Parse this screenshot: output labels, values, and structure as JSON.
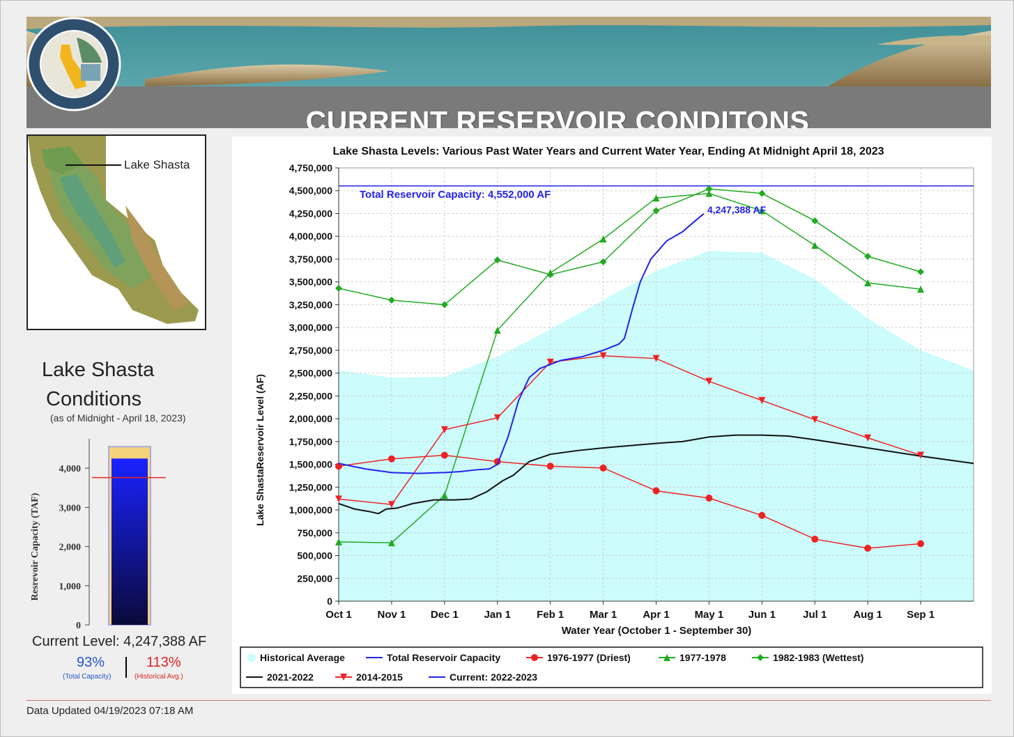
{
  "header": {
    "title": "CURRENT RESERVOIR CONDITONS"
  },
  "map": {
    "label": "Lake Shasta"
  },
  "conditions": {
    "title_line1": "Lake Shasta",
    "title_line2": "Conditions",
    "subtitle": "(as of Midnight - April 18, 2023)",
    "gauge_ylabel": "Resrevoir Capacity (TAF)",
    "gauge_ticks": [
      "4,000",
      "3,000",
      "2,000",
      "1,000",
      "0"
    ],
    "gauge_capacity_taf": 4552,
    "gauge_current_taf": 4247,
    "gauge_hist_avg_taf": 3760,
    "current_level": "Current Level: 4,247,388 AF",
    "pct_total": "93%",
    "pct_total_label": "(Total Capacity)",
    "pct_hist": "113%",
    "pct_hist_label": "(Historical Avg.)"
  },
  "footer": {
    "updated": "Data Updated 04/19/2023 07:18 AM"
  },
  "colors": {
    "historical": "#ccfcfc",
    "capacity": "#2222ee",
    "driest": "#ee2222",
    "y7778": "#22aa22",
    "wettest": "#22aa22",
    "y2122": "#111111",
    "y1415": "#ee2222",
    "current": "#2222ee"
  },
  "chart_data": {
    "type": "line",
    "title": "Lake Shasta Levels: Various Past Water Years and Current Water Year, Ending At Midnight April 18, 2023",
    "xlabel": "Water Year (October 1 - September 30)",
    "ylabel": "Lake ShastaReservoir Level (AF)",
    "x_ticks": [
      "Oct 1",
      "Nov 1",
      "Dec 1",
      "Jan 1",
      "Feb 1",
      "Mar 1",
      "Apr 1",
      "May 1",
      "Jun 1",
      "Jul 1",
      "Aug 1",
      "Sep 1"
    ],
    "xlim": [
      0,
      12
    ],
    "ylim": [
      0,
      4750000
    ],
    "y_ticks": [
      0,
      250000,
      500000,
      750000,
      1000000,
      1250000,
      1500000,
      1750000,
      2000000,
      2250000,
      2500000,
      2750000,
      3000000,
      3250000,
      3500000,
      3750000,
      4000000,
      4250000,
      4500000,
      4750000
    ],
    "y_tick_labels": [
      "0",
      "250,000",
      "500,000",
      "750,000",
      "1,000,000",
      "1,250,000",
      "1,500,000",
      "1,750,000",
      "2,000,000",
      "2,250,000",
      "2,500,000",
      "2,750,000",
      "3,000,000",
      "3,250,000",
      "3,500,000",
      "3,750,000",
      "4,000,000",
      "4,250,000",
      "4,500,000",
      "4,750,000"
    ],
    "capacity": {
      "value": 4552000,
      "label": "Total Reservoir Capacity: 4,552,000 AF"
    },
    "current_label": "4,247,388 AF",
    "historical_average": {
      "x": [
        0,
        1,
        2,
        3,
        4,
        5,
        6,
        7,
        8,
        9,
        10,
        11,
        12
      ],
      "y": [
        2530000,
        2450000,
        2460000,
        2680000,
        2980000,
        3300000,
        3620000,
        3840000,
        3820000,
        3530000,
        3100000,
        2750000,
        2530000
      ]
    },
    "series": [
      {
        "name": "1976-1977 (Driest)",
        "marker": "circle",
        "color_key": "driest",
        "x": [
          0,
          1,
          2,
          3,
          4,
          5,
          6,
          7,
          8,
          9,
          10,
          11
        ],
        "y": [
          1480000,
          1560000,
          1600000,
          1530000,
          1480000,
          1460000,
          1210000,
          1130000,
          940000,
          680000,
          580000,
          630000
        ]
      },
      {
        "name": "1977-1978",
        "marker": "triangle-up",
        "color_key": "y7778",
        "x": [
          0,
          1,
          2,
          3,
          4,
          5,
          6,
          7,
          8,
          9,
          10,
          11
        ],
        "y": [
          650000,
          640000,
          1160000,
          2970000,
          3600000,
          3970000,
          4420000,
          4470000,
          4280000,
          3900000,
          3490000,
          3420000
        ]
      },
      {
        "name": "1982-1983 (Wettest)",
        "marker": "diamond",
        "color_key": "wettest",
        "x": [
          0,
          1,
          2,
          3,
          4,
          5,
          6,
          7,
          8,
          9,
          10,
          11
        ],
        "y": [
          3430000,
          3300000,
          3250000,
          3740000,
          3580000,
          3720000,
          4280000,
          4520000,
          4470000,
          4170000,
          3780000,
          3610000
        ]
      },
      {
        "name": "2021-2022",
        "marker": "none",
        "color_key": "y2122",
        "x": [
          0,
          0.3,
          0.6,
          0.75,
          0.9,
          1.1,
          1.4,
          1.8,
          2.2,
          2.5,
          2.8,
          3.1,
          3.3,
          3.6,
          4.0,
          4.5,
          5.0,
          6.0,
          6.5,
          7.0,
          7.5,
          8.0,
          8.5,
          9.0,
          10.0,
          11.0,
          12.0
        ],
        "y": [
          1070000,
          1010000,
          980000,
          960000,
          1010000,
          1020000,
          1070000,
          1110000,
          1110000,
          1120000,
          1200000,
          1320000,
          1380000,
          1530000,
          1610000,
          1650000,
          1680000,
          1730000,
          1750000,
          1800000,
          1820000,
          1820000,
          1810000,
          1770000,
          1680000,
          1590000,
          1510000
        ]
      },
      {
        "name": "2014-2015",
        "marker": "triangle-down",
        "color_key": "y1415",
        "x": [
          0,
          1,
          2,
          3,
          4,
          5,
          6,
          7,
          8,
          9,
          10,
          11
        ],
        "y": [
          1120000,
          1060000,
          1880000,
          2010000,
          2620000,
          2690000,
          2660000,
          2410000,
          2200000,
          1990000,
          1790000,
          1600000
        ]
      },
      {
        "name": "Current: 2022-2023",
        "marker": "none",
        "color_key": "current",
        "x": [
          0,
          0.5,
          1,
          1.5,
          2,
          2.3,
          2.6,
          2.85,
          3.0,
          3.2,
          3.4,
          3.6,
          3.8,
          4.2,
          4.6,
          5.0,
          5.3,
          5.4,
          5.55,
          5.7,
          5.9,
          6.2,
          6.5,
          6.7,
          6.9
        ],
        "y": [
          1510000,
          1450000,
          1410000,
          1400000,
          1410000,
          1420000,
          1440000,
          1450000,
          1500000,
          1800000,
          2200000,
          2450000,
          2550000,
          2640000,
          2680000,
          2750000,
          2820000,
          2880000,
          3200000,
          3500000,
          3750000,
          3950000,
          4050000,
          4150000,
          4247388
        ]
      }
    ],
    "legend": [
      {
        "label": "Historical Average",
        "type": "area",
        "color_key": "historical"
      },
      {
        "label": "Total Reservoir Capacity",
        "type": "line",
        "color_key": "capacity"
      },
      {
        "label": "1976-1977 (Driest)",
        "type": "circle",
        "color_key": "driest"
      },
      {
        "label": "1977-1978",
        "type": "triangle-up",
        "color_key": "y7778"
      },
      {
        "label": "1982-1983 (Wettest)",
        "type": "diamond",
        "color_key": "wettest"
      },
      {
        "label": "2021-2022",
        "type": "line",
        "color_key": "y2122"
      },
      {
        "label": "2014-2015",
        "type": "triangle-down",
        "color_key": "y1415"
      },
      {
        "label": "Current: 2022-2023",
        "type": "line",
        "color_key": "current"
      }
    ]
  }
}
